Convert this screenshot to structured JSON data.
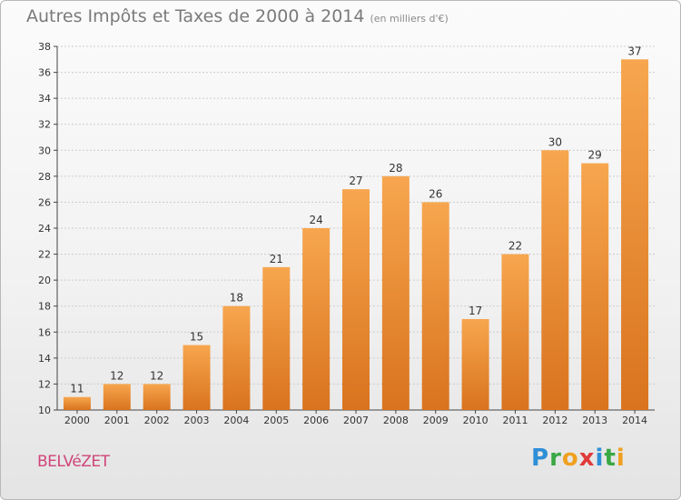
{
  "header": {
    "title": "Autres Impôts et Taxes de 2000 à 2014",
    "subtitle": "(en milliers d'€)"
  },
  "footer": {
    "location": "BELVéZET",
    "logo_letters": [
      "P",
      "r",
      "o",
      "x",
      "i",
      "t",
      "i"
    ]
  },
  "colors": {
    "bar_top": "#f7a64f",
    "bar_bottom": "#d9731e",
    "grid": "#cccccc",
    "axis": "#444444"
  },
  "chart_data": {
    "type": "bar",
    "title": "Autres Impôts et Taxes de 2000 à 2014",
    "subtitle": "(en milliers d'€)",
    "categories": [
      "2000",
      "2001",
      "2002",
      "2003",
      "2004",
      "2005",
      "2006",
      "2007",
      "2008",
      "2009",
      "2010",
      "2011",
      "2012",
      "2013",
      "2014"
    ],
    "values": [
      11,
      12,
      12,
      15,
      18,
      21,
      24,
      27,
      28,
      26,
      17,
      22,
      30,
      29,
      37
    ],
    "ylim": [
      10,
      38
    ],
    "yticks": [
      10,
      12,
      14,
      16,
      18,
      20,
      22,
      24,
      26,
      28,
      30,
      32,
      34,
      36,
      38
    ],
    "grid": true,
    "data_labels": true
  }
}
